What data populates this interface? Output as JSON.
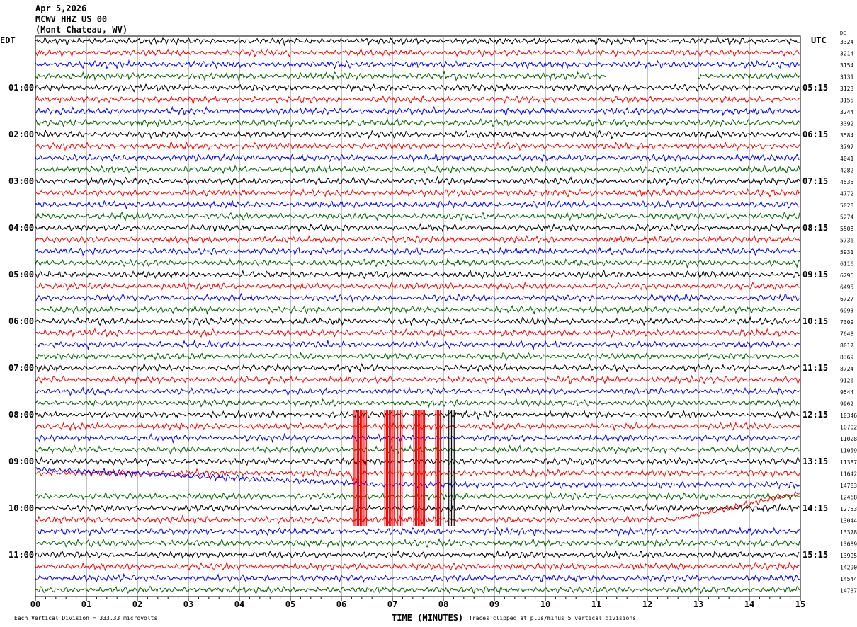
{
  "header": {
    "date": "Apr 5,2026",
    "station": "MCWV HHZ US 00",
    "location": "(Mont Chateau, WV)"
  },
  "left_zone": "EDT",
  "right_zone": "UTC",
  "dc_label": "DC",
  "chart_data": {
    "type": "line",
    "title": "MCWV HHZ US 00 helicorder",
    "xlabel": "TIME (MINUTES)",
    "xlim": [
      0,
      15
    ],
    "x_ticks": [
      "00",
      "01",
      "02",
      "03",
      "04",
      "05",
      "06",
      "07",
      "08",
      "09",
      "10",
      "11",
      "12",
      "13",
      "14",
      "15"
    ],
    "trace_colors": [
      "#000000",
      "#ff0000",
      "#0000ff",
      "#006400"
    ],
    "left_hour_labels": [
      "01:00",
      "02:00",
      "03:00",
      "04:00",
      "05:00",
      "06:00",
      "07:00",
      "08:00",
      "09:00",
      "10:00",
      "11:00"
    ],
    "right_hour_labels": [
      "05:15",
      "06:15",
      "07:15",
      "08:15",
      "09:15",
      "10:15",
      "11:15",
      "12:15",
      "13:15",
      "14:15",
      "15:15"
    ],
    "dc_offsets": [
      "3324",
      "3214",
      "3154",
      "3131",
      "3123",
      "3155",
      "3244",
      "3392",
      "3584",
      "3797",
      "4041",
      "4282",
      "4535",
      "4772",
      "5020",
      "5274",
      "5508",
      "5736",
      "5931",
      "6116",
      "6296",
      "6495",
      "6727",
      "6993",
      "7309",
      "7648",
      "8017",
      "8369",
      "8724",
      "9126",
      "9544",
      "9962",
      "10346",
      "10702",
      "11028",
      "11059",
      "11387",
      "11642",
      "14783",
      "12468",
      "12753",
      "13044",
      "13378",
      "13689",
      "13995",
      "14290",
      "14544",
      "14737"
    ],
    "gap": {
      "trace": 3,
      "from_min": 11.2,
      "to_min": 13.0
    },
    "clipped_event": {
      "from_trace": 32,
      "to_trace": 42,
      "bursts_min": [
        [
          6.25,
          6.5
        ],
        [
          6.85,
          7.05
        ],
        [
          7.1,
          7.2
        ],
        [
          7.42,
          7.65
        ],
        [
          7.85,
          7.95
        ],
        [
          8.1,
          8.22
        ]
      ]
    }
  },
  "footer": {
    "scale": "Each Vertical Division =  333.33 microvolts",
    "clip_note": "Traces clipped at plus/minus 5 vertical divisions"
  }
}
